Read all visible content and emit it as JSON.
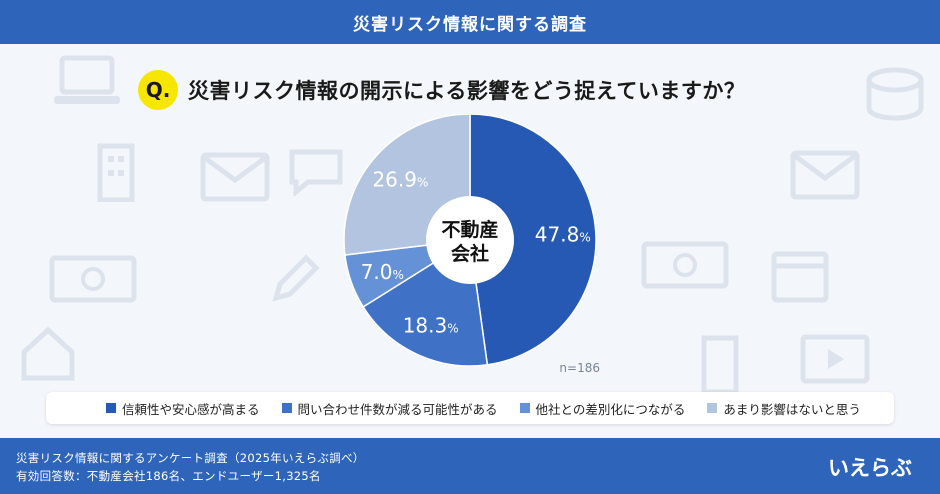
{
  "header": {
    "title": "災害リスク情報に関する調査"
  },
  "question": {
    "badge": "Q.",
    "text": "災害リスク情報の開示による影響をどう捉えていますか？"
  },
  "chart_data": {
    "type": "pie",
    "center_label_line1": "不動産",
    "center_label_line2": "会社",
    "sample_size": "n=186",
    "series": [
      {
        "name": "信頼性や安心感が高まる",
        "value": 47.8,
        "label": "47.8",
        "unit": "%",
        "color": "#2559b3"
      },
      {
        "name": "問い合わせ件数が減る可能性がある",
        "value": 18.3,
        "label": "18.3",
        "unit": "%",
        "color": "#3f72c6"
      },
      {
        "name": "他社との差別化につながる",
        "value": 7.0,
        "label": "7.0",
        "unit": "%",
        "color": "#6592d6"
      },
      {
        "name": "あまり影響はないと思う",
        "value": 26.9,
        "label": "26.9",
        "unit": "%",
        "color": "#b2c4df"
      }
    ],
    "legend_position": "bottom"
  },
  "footer": {
    "line1": "災害リスク情報に関するアンケート調査（2025年いえらぶ調べ）",
    "line2": "有効回答数：不動産会社186名、エンドユーザー1,325名"
  },
  "logo": {
    "text": "いえらぶ"
  },
  "icons": {
    "background": [
      "laptop-icon",
      "building-icon",
      "envelope-icon",
      "chat-icon",
      "money-icon",
      "calendar-icon",
      "pencil-icon",
      "house-icon",
      "video-icon",
      "cloud-icon"
    ]
  }
}
